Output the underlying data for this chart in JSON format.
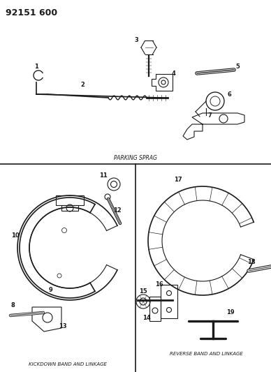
{
  "title": "92151 600",
  "bg_color": "#ffffff",
  "line_color": "#1a1a1a",
  "parking_sprag_label": "PARKING SPRAG",
  "kickdown_label": "KICKDOWN BAND AND LINKAGE",
  "reverse_label": "REVERSE BAND AND LINKAGE",
  "fig_w": 3.88,
  "fig_h": 5.33,
  "dpi": 100
}
